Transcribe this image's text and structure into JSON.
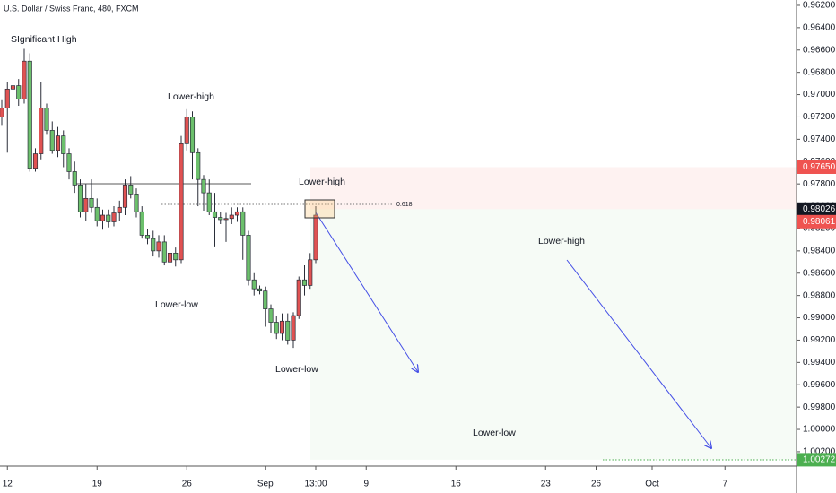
{
  "chart_data": {
    "type": "candlestick",
    "title": "U.S. Dollar / Swiss Franc, 480, FXCM",
    "inverted": true,
    "up_color": "#6cc06c",
    "down_color": "#e05252",
    "wick_color": "#2a2e39",
    "open": [
      0.972,
      0.9712,
      0.9695,
      0.9692,
      0.9704,
      0.967,
      0.9766,
      0.9753,
      0.9712,
      0.9732,
      0.975,
      0.9737,
      0.9753,
      0.9769,
      0.9781,
      0.9805,
      0.9793,
      0.9801,
      0.9813,
      0.9808,
      0.9814,
      0.9806,
      0.9801,
      0.9781,
      0.9789,
      0.9805,
      0.9826,
      0.9829,
      0.984,
      0.9832,
      0.985,
      0.9842,
      0.9848,
      0.9744,
      0.972,
      0.9752,
      0.9776,
      0.9788,
      0.9805,
      0.981,
      0.9812,
      0.9811,
      0.9808,
      0.9805,
      0.9826,
      0.9866,
      0.9874,
      0.9876,
      0.9892,
      0.9904,
      0.9914,
      0.9903,
      0.992,
      0.9898,
      0.9866,
      0.9871,
      0.9848
    ],
    "high": [
      0.9728,
      0.9752,
      0.972,
      0.971,
      0.9708,
      0.9769,
      0.9769,
      0.9758,
      0.9736,
      0.9753,
      0.9756,
      0.9765,
      0.9776,
      0.9788,
      0.981,
      0.9813,
      0.9806,
      0.9818,
      0.9821,
      0.9819,
      0.9818,
      0.9813,
      0.9808,
      0.9793,
      0.981,
      0.9829,
      0.9834,
      0.9845,
      0.9846,
      0.9853,
      0.9877,
      0.9854,
      0.9851,
      0.975,
      0.9776,
      0.98,
      0.9804,
      0.9808,
      0.9836,
      0.9816,
      0.9832,
      0.9816,
      0.9814,
      0.9848,
      0.9871,
      0.988,
      0.9879,
      0.9908,
      0.9914,
      0.9919,
      0.992,
      0.9924,
      0.9927,
      0.9901,
      0.988,
      0.9874,
      0.9851
    ],
    "low": [
      0.9705,
      0.9689,
      0.9683,
      0.9686,
      0.9659,
      0.9663,
      0.9748,
      0.9689,
      0.9708,
      0.9724,
      0.9729,
      0.9732,
      0.9748,
      0.976,
      0.9776,
      0.978,
      0.9776,
      0.9793,
      0.9803,
      0.9803,
      0.98,
      0.9795,
      0.9776,
      0.9773,
      0.9784,
      0.98,
      0.982,
      0.9822,
      0.9826,
      0.9826,
      0.9834,
      0.9837,
      0.9737,
      0.9713,
      0.9715,
      0.9748,
      0.9772,
      0.9776,
      0.9788,
      0.9805,
      0.9806,
      0.9801,
      0.9801,
      0.9801,
      0.9822,
      0.986,
      0.9871,
      0.9872,
      0.9888,
      0.9898,
      0.9896,
      0.9896,
      0.9895,
      0.9863,
      0.9853,
      0.9842,
      0.98
    ],
    "close": [
      0.9712,
      0.9695,
      0.9692,
      0.9704,
      0.967,
      0.9766,
      0.9753,
      0.9712,
      0.9732,
      0.975,
      0.9737,
      0.9753,
      0.9769,
      0.9781,
      0.9805,
      0.9793,
      0.9801,
      0.9813,
      0.9808,
      0.9814,
      0.9806,
      0.9801,
      0.9781,
      0.9789,
      0.9805,
      0.9826,
      0.9829,
      0.984,
      0.9832,
      0.985,
      0.9842,
      0.9848,
      0.9744,
      0.972,
      0.9752,
      0.9776,
      0.9788,
      0.9805,
      0.981,
      0.9812,
      0.9811,
      0.9808,
      0.9805,
      0.9826,
      0.9866,
      0.9874,
      0.9876,
      0.9892,
      0.9904,
      0.9914,
      0.9903,
      0.992,
      0.9898,
      0.9866,
      0.9871,
      0.9848,
      0.9808
    ],
    "xlim": [
      -0.32,
      141.76
    ],
    "xticks": [
      {
        "value": 1,
        "label": "12"
      },
      {
        "value": 17,
        "label": "19"
      },
      {
        "value": 33,
        "label": "26"
      },
      {
        "value": 47,
        "label": "Sep"
      },
      {
        "value": 56,
        "label": "13:00"
      },
      {
        "value": 65,
        "label": "9"
      },
      {
        "value": 81,
        "label": "16"
      },
      {
        "value": 97,
        "label": "23"
      },
      {
        "value": 106,
        "label": "26"
      },
      {
        "value": 116,
        "label": "Oct"
      },
      {
        "value": 129,
        "label": "7"
      }
    ],
    "ylim": [
      0.96152,
      1.00329
    ],
    "yticks": [
      {
        "value": 0.962,
        "label": "0.96200"
      },
      {
        "value": 0.964,
        "label": "0.96400"
      },
      {
        "value": 0.966,
        "label": "0.96600"
      },
      {
        "value": 0.968,
        "label": "0.96800"
      },
      {
        "value": 0.97,
        "label": "0.97000"
      },
      {
        "value": 0.972,
        "label": "0.97200"
      },
      {
        "value": 0.974,
        "label": "0.97400"
      },
      {
        "value": 0.976,
        "label": "0.97600"
      },
      {
        "value": 0.978,
        "label": "0.97800"
      },
      {
        "value": 0.98,
        "label": "0.98000"
      },
      {
        "value": 0.982,
        "label": "0.98200"
      },
      {
        "value": 0.984,
        "label": "0.98400"
      },
      {
        "value": 0.986,
        "label": "0.98600"
      },
      {
        "value": 0.988,
        "label": "0.98800"
      },
      {
        "value": 0.99,
        "label": "0.99000"
      },
      {
        "value": 0.992,
        "label": "0.99200"
      },
      {
        "value": 0.994,
        "label": "0.99400"
      },
      {
        "value": 0.996,
        "label": "0.99600"
      },
      {
        "value": 0.998,
        "label": "0.99800"
      },
      {
        "value": 1.0,
        "label": "1.00000"
      },
      {
        "value": 1.002,
        "label": "1.00200"
      }
    ],
    "price_labels": [
      {
        "value": 0.9765,
        "label": "0.97650",
        "color": "#ef5350"
      },
      {
        "value": 0.98026,
        "label": "0.98026",
        "color": "#131722"
      },
      {
        "value": 0.98061,
        "label": "0.98061",
        "color": "#ef5350"
      },
      {
        "value": 1.00272,
        "label": "1.00272",
        "color": "#4caf50"
      }
    ],
    "annotations": [
      "SIgnificant High",
      "Lower-high",
      "Lower-high",
      "Lower-low",
      "Lower-low",
      "Lower-high",
      "Lower-low",
      "0.618"
    ]
  }
}
